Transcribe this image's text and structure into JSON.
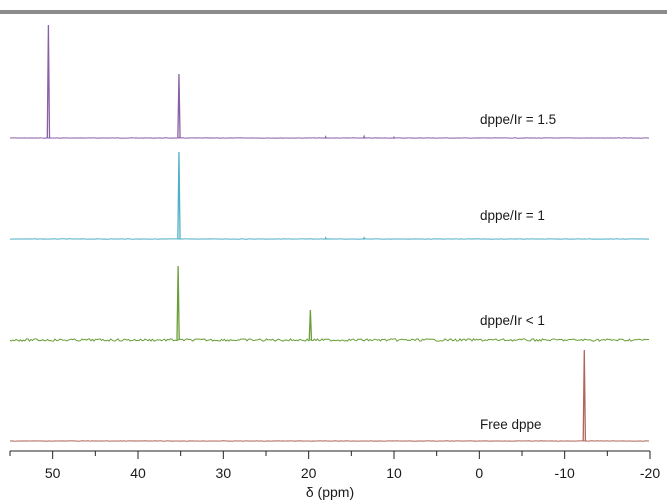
{
  "chart_data": {
    "type": "line",
    "chart_style": "stacked NMR spectra",
    "xlabel": "δ (ppm)",
    "ylabel": "",
    "title": "",
    "xlim": [
      55,
      -20
    ],
    "x_reversed": true,
    "x_ticks": [
      50,
      40,
      30,
      20,
      10,
      0,
      -10,
      -20
    ],
    "x_tick_labels": [
      "50",
      "40",
      "30",
      "20",
      "10",
      "0",
      "-10",
      "-20"
    ],
    "grid": false,
    "legend": "none",
    "top_border_color": "#8c8c8c",
    "series": [
      {
        "name": "dppe/Ir = 1.5",
        "color": "#8a5fa6",
        "noise": 0.2,
        "peaks": [
          {
            "x": 50.5,
            "height": 113
          },
          {
            "x": 35.2,
            "height": 64
          },
          {
            "x": 18.0,
            "height": 1.5
          },
          {
            "x": 13.5,
            "height": 2
          },
          {
            "x": 10.0,
            "height": 1
          }
        ]
      },
      {
        "name": "dppe/Ir = 1",
        "color": "#4fb0c6",
        "noise": 0.2,
        "peaks": [
          {
            "x": 35.2,
            "height": 87
          },
          {
            "x": 18.0,
            "height": 1.5
          },
          {
            "x": 13.5,
            "height": 1.5
          }
        ]
      },
      {
        "name": "dppe/Ir < 1",
        "color": "#6a9e3a",
        "noise": 1.2,
        "peaks": [
          {
            "x": 35.3,
            "height": 74
          },
          {
            "x": 19.8,
            "height": 30
          }
        ]
      },
      {
        "name": "Free dppe",
        "color": "#b0665a",
        "noise": 0.2,
        "peaks": [
          {
            "x": -12.3,
            "height": 91
          }
        ]
      }
    ]
  }
}
